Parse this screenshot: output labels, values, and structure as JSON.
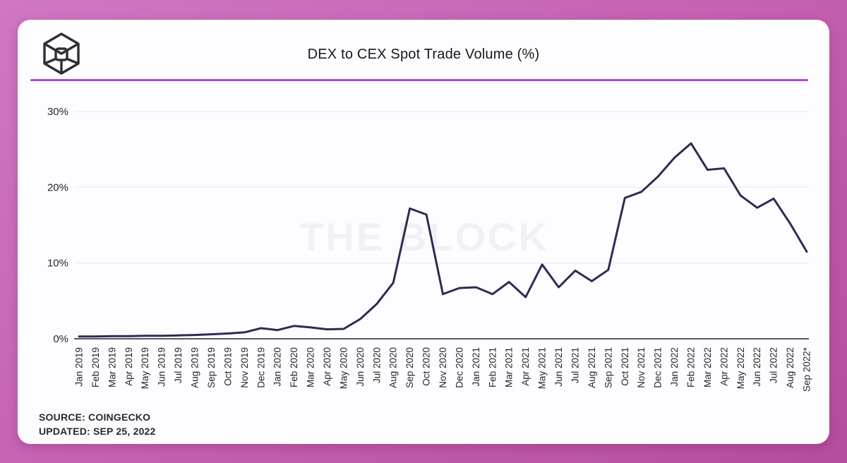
{
  "header": {
    "title": "DEX to CEX Spot Trade Volume (%)",
    "logo_name": "the-block-logo"
  },
  "divider_color": "#a94ad4",
  "footer": {
    "source": "SOURCE: COINGECKO",
    "updated": "UPDATED: SEP 25, 2022"
  },
  "chart_data": {
    "type": "line",
    "title": "DEX to CEX Spot Trade Volume (%)",
    "x": [
      "Jan 2019",
      "Feb 2019",
      "Mar 2019",
      "Apr 2019",
      "May 2019",
      "Jun 2019",
      "Jul 2019",
      "Aug 2019",
      "Sep 2019",
      "Oct 2019",
      "Nov 2019",
      "Dec 2019",
      "Jan 2020",
      "Feb 2020",
      "Mar 2020",
      "Apr 2020",
      "May 2020",
      "Jun 2020",
      "Jul 2020",
      "Aug 2020",
      "Sep 2020",
      "Oct 2020",
      "Nov 2020",
      "Dec 2020",
      "Jan 2021",
      "Feb 2021",
      "Mar 2021",
      "Apr 2021",
      "May 2021",
      "Jun 2021",
      "Jul 2021",
      "Aug 2021",
      "Sep 2021",
      "Oct 2021",
      "Nov 2021",
      "Dec 2021",
      "Jan 2022",
      "Feb 2022",
      "Mar 2022",
      "Apr 2022",
      "May 2022",
      "Jun 2022",
      "Jul 2022",
      "Aug 2022",
      "Sep 2022*"
    ],
    "values": [
      0.3,
      0.3,
      0.35,
      0.35,
      0.4,
      0.4,
      0.45,
      0.5,
      0.6,
      0.7,
      0.85,
      1.4,
      1.15,
      1.7,
      1.5,
      1.25,
      1.3,
      2.6,
      4.6,
      7.4,
      17.2,
      16.4,
      5.9,
      6.7,
      6.8,
      5.9,
      7.5,
      5.5,
      9.8,
      6.8,
      9.0,
      7.6,
      9.1,
      18.6,
      19.4,
      21.4,
      23.9,
      25.8,
      22.3,
      22.5,
      18.9,
      17.3,
      18.5,
      15.2,
      11.5
    ],
    "xlabel": "",
    "ylabel": "",
    "ylim": [
      0,
      30
    ],
    "ytick_values": [
      0,
      10,
      20,
      30
    ],
    "ytick_labels": [
      "0%",
      "10%",
      "20%",
      "30%"
    ],
    "grid": true,
    "legend": "none",
    "watermark": "THE BLOCK",
    "line_color": "#2e2b55",
    "grid_color": "#efeff4",
    "axis_color": "#5a5761",
    "label_color": "#26262c",
    "watermark_color": "#f1f0f4"
  }
}
